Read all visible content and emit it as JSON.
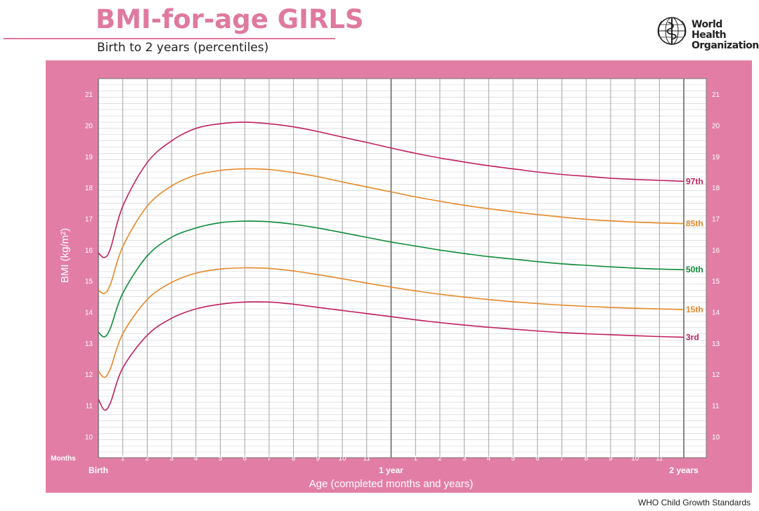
{
  "header": {
    "title": "BMI-for-age GIRLS",
    "subtitle": "Birth to 2 years (percentiles)",
    "org_name": "World Health\nOrganization",
    "org_icon": "who-emblem-icon"
  },
  "footer": {
    "source": "WHO Child Growth Standards"
  },
  "colors": {
    "panel": "#e27ea6",
    "plot_bg": "#ffffff",
    "grid": "#8a8a8a",
    "p97": "#c01f5f",
    "p85": "#e5892a",
    "p50": "#0e8a3a",
    "p15": "#e5892a",
    "p3": "#c01f5f"
  },
  "chart_data": {
    "type": "line",
    "title": "BMI-for-age GIRLS",
    "subtitle": "Birth to 2 years (percentiles)",
    "xlabel": "Age (completed months and years)",
    "ylabel": "BMI (kg/m²)",
    "xlim": [
      0,
      24
    ],
    "ylim": [
      9.5,
      21.5
    ],
    "grid": true,
    "y_ticks": [
      10,
      11,
      12,
      13,
      14,
      15,
      16,
      17,
      18,
      19,
      20,
      21
    ],
    "x_tick_title": "Months",
    "x_ticks": [
      {
        "x": 0,
        "label": "Birth",
        "major": true
      },
      {
        "x": 1,
        "label": "1"
      },
      {
        "x": 2,
        "label": "2"
      },
      {
        "x": 3,
        "label": "3"
      },
      {
        "x": 4,
        "label": "4"
      },
      {
        "x": 5,
        "label": "5"
      },
      {
        "x": 6,
        "label": "6"
      },
      {
        "x": 7,
        "label": "7"
      },
      {
        "x": 8,
        "label": "8"
      },
      {
        "x": 9,
        "label": "9"
      },
      {
        "x": 10,
        "label": "10"
      },
      {
        "x": 11,
        "label": "11"
      },
      {
        "x": 12,
        "label": "1 year",
        "major": true
      },
      {
        "x": 13,
        "label": "1"
      },
      {
        "x": 14,
        "label": "2"
      },
      {
        "x": 15,
        "label": "3"
      },
      {
        "x": 16,
        "label": "4"
      },
      {
        "x": 17,
        "label": "5"
      },
      {
        "x": 18,
        "label": "6"
      },
      {
        "x": 19,
        "label": "7"
      },
      {
        "x": 20,
        "label": "8"
      },
      {
        "x": 21,
        "label": "9"
      },
      {
        "x": 22,
        "label": "10"
      },
      {
        "x": 23,
        "label": "11"
      },
      {
        "x": 24,
        "label": "2 years",
        "major": true
      }
    ],
    "x": [
      0,
      0.25,
      0.5,
      1,
      2,
      3,
      4,
      5,
      6,
      7,
      8,
      9,
      10,
      11,
      12,
      13,
      14,
      15,
      16,
      17,
      18,
      19,
      20,
      21,
      22,
      23,
      24
    ],
    "series": [
      {
        "name": "97th",
        "color_key": "p97",
        "values": [
          15.9,
          15.75,
          16.05,
          17.4,
          18.8,
          19.5,
          19.9,
          20.05,
          20.1,
          20.05,
          19.95,
          19.8,
          19.62,
          19.45,
          19.27,
          19.1,
          18.95,
          18.82,
          18.7,
          18.6,
          18.5,
          18.42,
          18.36,
          18.3,
          18.26,
          18.23,
          18.2
        ]
      },
      {
        "name": "85th",
        "color_key": "p85",
        "values": [
          14.7,
          14.6,
          14.9,
          16.1,
          17.4,
          18.05,
          18.4,
          18.55,
          18.6,
          18.58,
          18.48,
          18.35,
          18.18,
          18.02,
          17.86,
          17.7,
          17.56,
          17.43,
          17.32,
          17.22,
          17.13,
          17.05,
          16.98,
          16.93,
          16.89,
          16.86,
          16.84
        ]
      },
      {
        "name": "50th",
        "color_key": "p50",
        "values": [
          13.35,
          13.2,
          13.5,
          14.6,
          15.8,
          16.4,
          16.7,
          16.87,
          16.92,
          16.9,
          16.82,
          16.7,
          16.55,
          16.4,
          16.25,
          16.12,
          15.99,
          15.88,
          15.78,
          15.7,
          15.62,
          15.55,
          15.5,
          15.45,
          15.41,
          15.38,
          15.36
        ]
      },
      {
        "name": "15th",
        "color_key": "p15",
        "values": [
          12.1,
          11.9,
          12.2,
          13.3,
          14.4,
          14.95,
          15.25,
          15.38,
          15.42,
          15.4,
          15.32,
          15.2,
          15.07,
          14.93,
          14.8,
          14.68,
          14.57,
          14.48,
          14.4,
          14.33,
          14.27,
          14.22,
          14.18,
          14.15,
          14.12,
          14.1,
          14.08
        ]
      },
      {
        "name": "3rd",
        "color_key": "p3",
        "values": [
          11.2,
          10.85,
          11.1,
          12.2,
          13.25,
          13.8,
          14.1,
          14.25,
          14.32,
          14.32,
          14.25,
          14.15,
          14.05,
          13.95,
          13.85,
          13.75,
          13.66,
          13.58,
          13.51,
          13.45,
          13.39,
          13.34,
          13.3,
          13.27,
          13.24,
          13.21,
          13.19
        ]
      }
    ]
  }
}
